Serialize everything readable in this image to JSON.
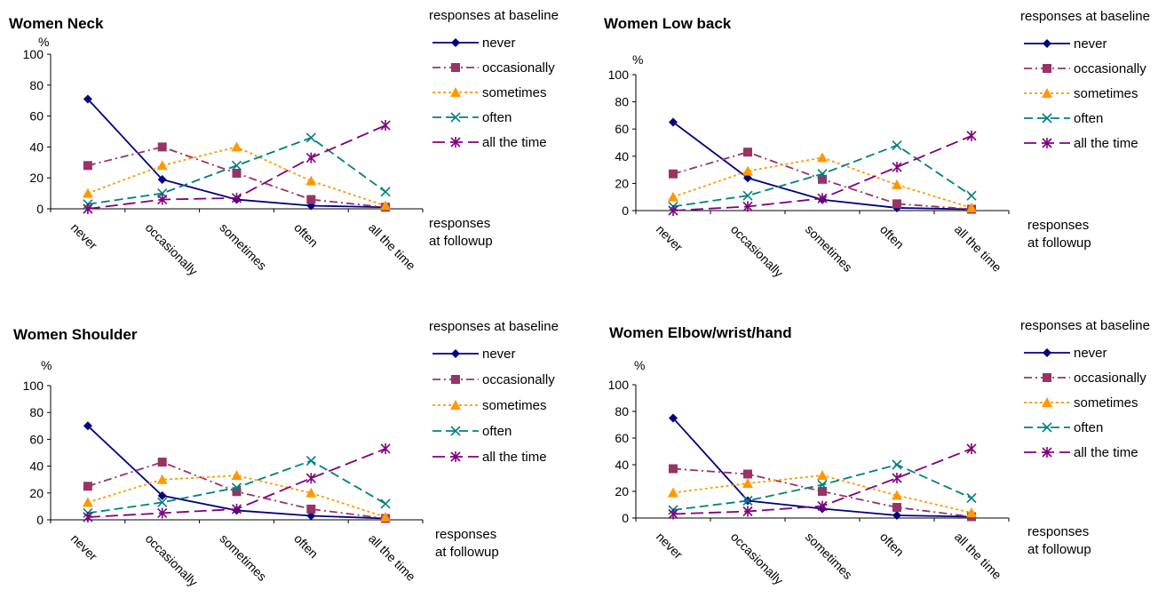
{
  "legend": {
    "heading": "responses at baseline",
    "items": [
      {
        "key": "never",
        "label": "never",
        "color": "#000080",
        "marker": "diamond",
        "dash": "solid"
      },
      {
        "key": "occasionally",
        "label": "occasionally",
        "color": "#993366",
        "marker": "square",
        "dash": "dashdot"
      },
      {
        "key": "sometimes",
        "label": "sometimes",
        "color": "#FF9900",
        "marker": "triangle",
        "dash": "dotted"
      },
      {
        "key": "often",
        "label": "often",
        "color": "#008080",
        "marker": "x",
        "dash": "dashed"
      },
      {
        "key": "all_the_time",
        "label": "all the time",
        "color": "#800080",
        "marker": "star",
        "dash": "longdash"
      }
    ]
  },
  "x_note": [
    "responses",
    "at followup"
  ],
  "ylabel": "%",
  "chart_data": [
    {
      "type": "line",
      "title": "Women Neck",
      "categories": [
        "never",
        "occasionally",
        "sometimes",
        "often",
        "all the time"
      ],
      "ylim": [
        0,
        100
      ],
      "yticks": [
        0,
        20,
        40,
        60,
        80,
        100
      ],
      "xlabel": "responses at followup",
      "ylabel": "%",
      "series": [
        {
          "name": "never",
          "values": [
            71,
            19,
            6,
            2,
            1
          ]
        },
        {
          "name": "occasionally",
          "values": [
            28,
            40,
            23,
            6,
            1
          ]
        },
        {
          "name": "sometimes",
          "values": [
            10,
            28,
            40,
            18,
            2
          ]
        },
        {
          "name": "often",
          "values": [
            3,
            10,
            28,
            46,
            11
          ]
        },
        {
          "name": "all the time",
          "values": [
            0,
            6,
            7,
            33,
            54
          ]
        }
      ]
    },
    {
      "type": "line",
      "title": "Women Low back",
      "categories": [
        "never",
        "occasionally",
        "sometimes",
        "often",
        "all the time"
      ],
      "ylim": [
        0,
        100
      ],
      "yticks": [
        0,
        20,
        40,
        60,
        80,
        100
      ],
      "xlabel": "responses at followup",
      "ylabel": "%",
      "series": [
        {
          "name": "never",
          "values": [
            65,
            24,
            8,
            2,
            1
          ]
        },
        {
          "name": "occasionally",
          "values": [
            27,
            43,
            23,
            5,
            1
          ]
        },
        {
          "name": "sometimes",
          "values": [
            10,
            29,
            39,
            19,
            2
          ]
        },
        {
          "name": "often",
          "values": [
            3,
            11,
            27,
            48,
            11
          ]
        },
        {
          "name": "all the time",
          "values": [
            0,
            3,
            9,
            32,
            55
          ]
        }
      ]
    },
    {
      "type": "line",
      "title": "Women Shoulder",
      "categories": [
        "never",
        "occasionally",
        "sometimes",
        "often",
        "all the time"
      ],
      "ylim": [
        0,
        100
      ],
      "yticks": [
        0,
        20,
        40,
        60,
        80,
        100
      ],
      "xlabel": "responses at followup",
      "ylabel": "%",
      "series": [
        {
          "name": "never",
          "values": [
            70,
            18,
            7,
            3,
            1
          ]
        },
        {
          "name": "occasionally",
          "values": [
            25,
            43,
            21,
            8,
            1
          ]
        },
        {
          "name": "sometimes",
          "values": [
            13,
            30,
            33,
            20,
            2
          ]
        },
        {
          "name": "often",
          "values": [
            5,
            13,
            24,
            44,
            12
          ]
        },
        {
          "name": "all the time",
          "values": [
            2,
            5,
            8,
            31,
            53
          ]
        }
      ]
    },
    {
      "type": "line",
      "title": "Women Elbow/wrist/hand",
      "categories": [
        "never",
        "occasionally",
        "sometimes",
        "often",
        "all the time"
      ],
      "ylim": [
        0,
        100
      ],
      "yticks": [
        0,
        20,
        40,
        60,
        80,
        100
      ],
      "xlabel": "responses at followup",
      "ylabel": "%",
      "series": [
        {
          "name": "never",
          "values": [
            75,
            13,
            7,
            2,
            1
          ]
        },
        {
          "name": "occasionally",
          "values": [
            37,
            33,
            20,
            8,
            1
          ]
        },
        {
          "name": "sometimes",
          "values": [
            19,
            26,
            32,
            17,
            4
          ]
        },
        {
          "name": "often",
          "values": [
            6,
            13,
            25,
            40,
            15
          ]
        },
        {
          "name": "all the time",
          "values": [
            3,
            5,
            9,
            30,
            52
          ]
        }
      ]
    }
  ]
}
